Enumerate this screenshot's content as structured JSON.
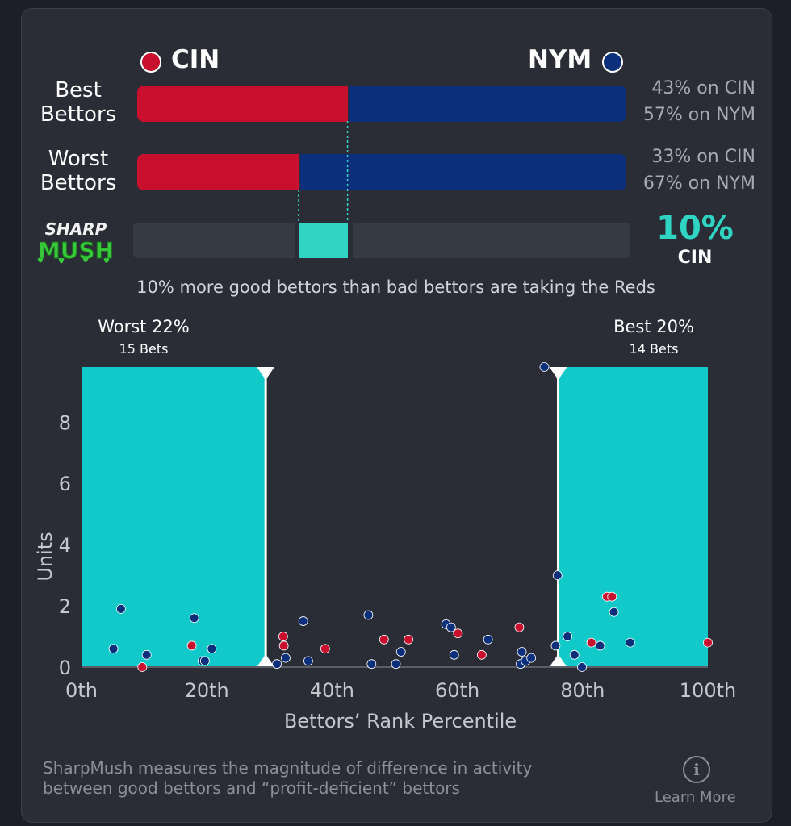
{
  "teams": {
    "away": {
      "abbr": "CIN",
      "color": "#c8102e"
    },
    "home": {
      "abbr": "NYM",
      "color": "#0b2f7a"
    }
  },
  "rows": [
    {
      "label_line1": "Best",
      "label_line2": "Bettors",
      "away_share": 43,
      "away_text": "43% on CIN",
      "home_text": "57% on NYM"
    },
    {
      "label_line1": "Worst",
      "label_line2": "Bettors",
      "away_share": 33,
      "away_text": "33% on CIN",
      "home_text": "67% on NYM"
    }
  ],
  "sharpmush": {
    "logo_top": "SHARP",
    "logo_bottom": "MUSH",
    "value": "10%",
    "team": "CIN",
    "accent_color": "#2fd4c2",
    "summary": "10% more good bettors than bad bettors are taking the Reds"
  },
  "chart": {
    "worst_label": "Worst 22%",
    "worst_bets": "15 Bets",
    "best_label": "Best 20%",
    "best_bets": "14 Bets",
    "xlabel": "Bettors’ Rank Percentile",
    "ylabel": "Units"
  },
  "chart_data": {
    "type": "scatter",
    "xlabel": "Bettors’ Rank Percentile",
    "ylabel": "Units",
    "xlim": [
      0,
      100
    ],
    "ylim": [
      0,
      9.8
    ],
    "xticks": [
      "0th",
      "20th",
      "40th",
      "60th",
      "80th",
      "100th"
    ],
    "yticks": [
      "0",
      "2",
      "4",
      "6",
      "8"
    ],
    "shaded_ranges": [
      [
        0,
        29.4
      ],
      [
        76.1,
        100
      ]
    ],
    "series": [
      {
        "name": "CIN",
        "color": "#c8102e",
        "points": [
          [
            9.7,
            0.0
          ],
          [
            17.6,
            0.7
          ],
          [
            32.2,
            1.0
          ],
          [
            32.3,
            0.7
          ],
          [
            38.9,
            0.6
          ],
          [
            48.3,
            0.9
          ],
          [
            52.2,
            0.9
          ],
          [
            60.1,
            1.1
          ],
          [
            63.9,
            0.4
          ],
          [
            69.9,
            1.3
          ],
          [
            81.4,
            0.8
          ],
          [
            83.9,
            2.3
          ],
          [
            84.7,
            2.3
          ],
          [
            100.0,
            0.8
          ]
        ]
      },
      {
        "name": "NYM",
        "color": "#0b2f7a",
        "points": [
          [
            5.1,
            0.6
          ],
          [
            6.3,
            1.9
          ],
          [
            10.4,
            0.4
          ],
          [
            18.0,
            1.6
          ],
          [
            19.3,
            0.2
          ],
          [
            19.7,
            0.2
          ],
          [
            20.8,
            0.6
          ],
          [
            31.2,
            0.1
          ],
          [
            32.6,
            0.3
          ],
          [
            35.4,
            1.5
          ],
          [
            36.2,
            0.2
          ],
          [
            45.8,
            1.7
          ],
          [
            46.3,
            0.1
          ],
          [
            50.2,
            0.1
          ],
          [
            51.0,
            0.5
          ],
          [
            58.2,
            1.4
          ],
          [
            59.0,
            1.3
          ],
          [
            59.5,
            0.4
          ],
          [
            64.9,
            0.9
          ],
          [
            70.1,
            0.1
          ],
          [
            70.3,
            0.5
          ],
          [
            70.9,
            0.2
          ],
          [
            71.8,
            0.3
          ],
          [
            73.9,
            9.8
          ],
          [
            75.7,
            0.7
          ],
          [
            76.0,
            3.0
          ],
          [
            77.6,
            1.0
          ],
          [
            78.7,
            0.4
          ],
          [
            79.9,
            0.0
          ],
          [
            82.8,
            0.7
          ],
          [
            85.0,
            1.8
          ],
          [
            87.6,
            0.8
          ]
        ]
      }
    ]
  },
  "footer": {
    "text_line1": "SharpMush measures the magnitude of difference in activity",
    "text_line2": "between good bettors and “profit-deficient” bettors",
    "info_icon": "i",
    "learn_more": "Learn More"
  }
}
